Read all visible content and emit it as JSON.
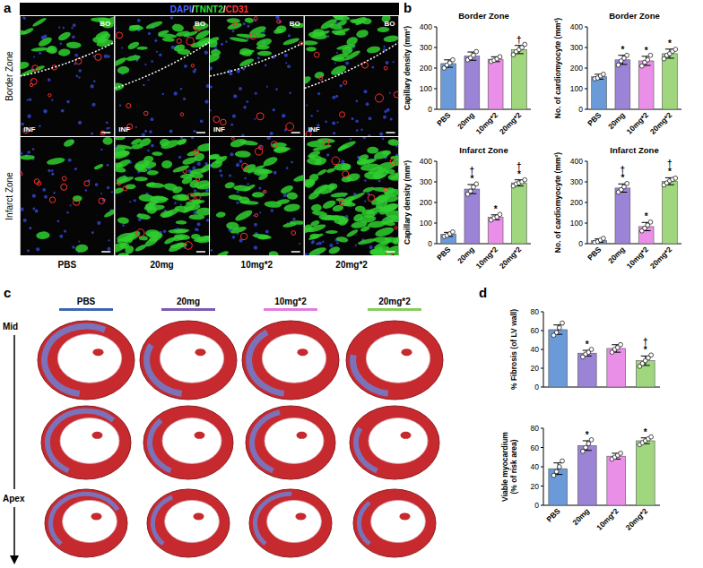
{
  "panel_labels": [
    "a",
    "b",
    "c",
    "d"
  ],
  "panel_a": {
    "stains": [
      {
        "text": "DAPI",
        "color": "#4a63ff"
      },
      {
        "text": "TNNT2",
        "color": "#35e035"
      },
      {
        "text": "CD31",
        "color": "#ff3535"
      }
    ],
    "separator": "/",
    "rows": [
      "Border Zone",
      "Infarct Zone"
    ],
    "columns": [
      "PBS",
      "20mg",
      "10mg*2",
      "20mg*2"
    ],
    "region_labels": [
      "BO",
      "INF"
    ]
  },
  "panel_c": {
    "columns": [
      "PBS",
      "20mg",
      "10mg*2",
      "20mg*2"
    ],
    "column_colors": [
      "#3f66b0",
      "#7d5bb5",
      "#e27ce2",
      "#86cc5e"
    ],
    "direction_labels": [
      "Mid",
      "Apex"
    ]
  },
  "chart_data": [
    {
      "type": "bar",
      "title": "Border Zone",
      "ylabel": [
        "Capillary density (mm²)"
      ],
      "categories": [
        "PBS",
        "20mg",
        "10mg*2",
        "20mg*2"
      ],
      "values": [
        222,
        258,
        243,
        290
      ],
      "errors": [
        18,
        20,
        12,
        20
      ],
      "points": [
        [
          200,
          215,
          225,
          240
        ],
        [
          240,
          250,
          262,
          280
        ],
        [
          232,
          238,
          245,
          255
        ],
        [
          265,
          280,
          290,
          300,
          315
        ]
      ],
      "annotations": [
        [],
        [],
        [],
        [
          "†"
        ]
      ],
      "colors": [
        "#6a9bd8",
        "#9b84d6",
        "#ea8fe8",
        "#9fd67e"
      ],
      "ylim": [
        0,
        400
      ],
      "yticks": [
        0,
        100,
        200,
        300,
        400
      ],
      "grid": false
    },
    {
      "type": "bar",
      "title": "Border Zone",
      "ylabel": [
        "No. of cardiomyocyte (mm²)"
      ],
      "categories": [
        "PBS",
        "20mg",
        "10mg*2",
        "20mg*2"
      ],
      "values": [
        158,
        240,
        235,
        270
      ],
      "errors": [
        12,
        22,
        22,
        22
      ],
      "points": [
        [
          148,
          152,
          162,
          170
        ],
        [
          215,
          235,
          248,
          262
        ],
        [
          210,
          228,
          240,
          262
        ],
        [
          245,
          262,
          270,
          282,
          291
        ]
      ],
      "annotations": [
        [],
        [
          "*"
        ],
        [
          "*"
        ],
        [
          "*"
        ]
      ],
      "colors": [
        "#6a9bd8",
        "#9b84d6",
        "#ea8fe8",
        "#9fd67e"
      ],
      "ylim": [
        0,
        400
      ],
      "yticks": [
        0,
        100,
        200,
        300,
        400
      ],
      "grid": false
    },
    {
      "type": "bar",
      "title": "Infarct Zone",
      "ylabel": [
        "Capillary density (mm²)"
      ],
      "categories": [
        "PBS",
        "20mg",
        "10mg*2",
        "20mg*2"
      ],
      "values": [
        45,
        265,
        128,
        295
      ],
      "errors": [
        10,
        22,
        12,
        15
      ],
      "points": [
        [
          35,
          40,
          48,
          57
        ],
        [
          240,
          255,
          275,
          290
        ],
        [
          115,
          125,
          130,
          142
        ],
        [
          280,
          290,
          295,
          300,
          310
        ]
      ],
      "annotations": [
        [],
        [
          "*",
          "†"
        ],
        [
          "*"
        ],
        [
          "*",
          "†"
        ]
      ],
      "colors": [
        "#6a9bd8",
        "#9b84d6",
        "#ea8fe8",
        "#9fd67e"
      ],
      "ylim": [
        0,
        400
      ],
      "yticks": [
        0,
        100,
        200,
        300,
        400
      ],
      "grid": false
    },
    {
      "type": "bar",
      "title": "Infarct Zone",
      "ylabel": [
        "No. of cardiomyocyte (mm²)"
      ],
      "categories": [
        "PBS",
        "20mg",
        "10mg*2",
        "20mg*2"
      ],
      "values": [
        15,
        270,
        83,
        303
      ],
      "errors": [
        8,
        20,
        20,
        17
      ],
      "points": [
        [
          6,
          10,
          18,
          26
        ],
        [
          250,
          262,
          276,
          292
        ],
        [
          62,
          75,
          90,
          105
        ],
        [
          285,
          295,
          305,
          312,
          318
        ]
      ],
      "annotations": [
        [],
        [
          "*",
          "†"
        ],
        [
          "*"
        ],
        [
          "*",
          "†"
        ]
      ],
      "colors": [
        "#6a9bd8",
        "#9b84d6",
        "#ea8fe8",
        "#9fd67e"
      ],
      "ylim": [
        0,
        400
      ],
      "yticks": [
        0,
        100,
        200,
        300,
        400
      ],
      "grid": false
    },
    {
      "type": "bar",
      "ylabel": [
        "% Fibrosis (of LV wall)"
      ],
      "categories": [
        "PBS",
        "20mg",
        "10mg*2",
        "20mg*2"
      ],
      "values": [
        61,
        36,
        41,
        28
      ],
      "errors": [
        5,
        3,
        4,
        5
      ],
      "points": [
        [
          55,
          58,
          63,
          68
        ],
        [
          32,
          35,
          37,
          40
        ],
        [
          37,
          40,
          42,
          45
        ],
        [
          22,
          25,
          28,
          31,
          34
        ]
      ],
      "annotations": [
        [],
        [
          "*"
        ],
        [],
        [
          "*",
          "†"
        ]
      ],
      "colors": [
        "#6a9bd8",
        "#9b84d6",
        "#ea8fe8",
        "#9fd67e"
      ],
      "ylim": [
        0,
        80
      ],
      "yticks": [
        0,
        20,
        40,
        60,
        80
      ],
      "grid": false,
      "tick_labels": "y"
    },
    {
      "type": "bar",
      "ylabel": [
        "Viable myocardium",
        "(% of risk area)"
      ],
      "categories": [
        "PBS",
        "20mg",
        "10mg*2",
        "20mg*2"
      ],
      "values": [
        38,
        62,
        51,
        67
      ],
      "errors": [
        6,
        5,
        3,
        3
      ],
      "points": [
        [
          31,
          35,
          40,
          46
        ],
        [
          56,
          60,
          64,
          68
        ],
        [
          48,
          50,
          52,
          54
        ],
        [
          63,
          65,
          67,
          69,
          71
        ]
      ],
      "annotations": [
        [],
        [
          "*"
        ],
        [],
        [
          "*"
        ]
      ],
      "colors": [
        "#6a9bd8",
        "#9b84d6",
        "#ea8fe8",
        "#9fd67e"
      ],
      "ylim": [
        0,
        80
      ],
      "yticks": [
        0,
        20,
        40,
        60,
        80
      ],
      "grid": false
    }
  ]
}
